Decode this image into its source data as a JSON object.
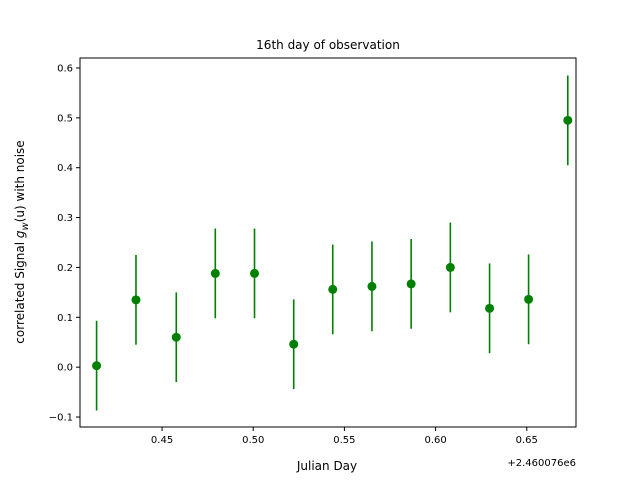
{
  "chart_data": {
    "type": "scatter",
    "title": "16th day of observation",
    "xlabel": "Julian Day",
    "ylabel_main": "correlated Signal ",
    "ylabel_math_g": "g",
    "ylabel_math_sub": "w",
    "ylabel_math_arg": "(u)",
    "ylabel_tail": " with noise",
    "x_offset_label": "+2.460076e6",
    "xlim": [
      0.405,
      0.677
    ],
    "ylim": [
      -0.12,
      0.62
    ],
    "x_ticks": [
      0.45,
      0.5,
      0.55,
      0.6,
      0.65
    ],
    "x_tick_labels": [
      "0.45",
      "0.50",
      "0.55",
      "0.60",
      "0.65"
    ],
    "y_ticks": [
      -0.1,
      0.0,
      0.1,
      0.2,
      0.3,
      0.4,
      0.5,
      0.6
    ],
    "y_tick_labels": [
      "−0.1",
      "0.0",
      "0.1",
      "0.2",
      "0.3",
      "0.4",
      "0.5",
      "0.6"
    ],
    "color": "#008000",
    "points": [
      {
        "x": 0.4141,
        "y": 0.003,
        "err": 0.09
      },
      {
        "x": 0.4357,
        "y": 0.135,
        "err": 0.09
      },
      {
        "x": 0.4578,
        "y": 0.06,
        "err": 0.09
      },
      {
        "x": 0.4792,
        "y": 0.188,
        "err": 0.09
      },
      {
        "x": 0.5007,
        "y": 0.188,
        "err": 0.09
      },
      {
        "x": 0.5222,
        "y": 0.046,
        "err": 0.09
      },
      {
        "x": 0.5436,
        "y": 0.156,
        "err": 0.09
      },
      {
        "x": 0.5651,
        "y": 0.162,
        "err": 0.09
      },
      {
        "x": 0.5866,
        "y": 0.167,
        "err": 0.09
      },
      {
        "x": 0.6081,
        "y": 0.2,
        "err": 0.09
      },
      {
        "x": 0.6296,
        "y": 0.118,
        "err": 0.09
      },
      {
        "x": 0.651,
        "y": 0.136,
        "err": 0.09
      },
      {
        "x": 0.6725,
        "y": 0.495,
        "err": 0.09
      }
    ]
  }
}
